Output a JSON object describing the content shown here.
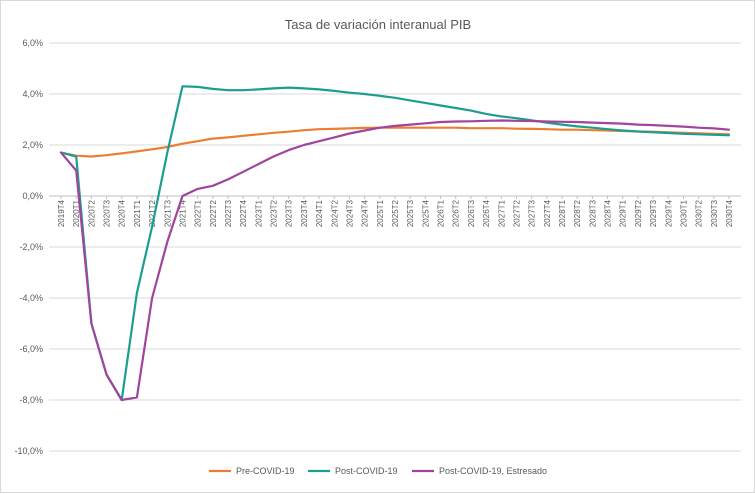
{
  "chart_data": {
    "type": "line",
    "title": "Tasa de variación interanual PIB",
    "xlabel": "",
    "ylabel": "",
    "ylim": [
      -10,
      6
    ],
    "yticks": [
      6,
      4,
      2,
      0,
      -2,
      -4,
      -6,
      -8,
      -10
    ],
    "ytick_labels": [
      "6,0%",
      "4,0%",
      "2,0%",
      "0,0%",
      "-2,0%",
      "-4,0%",
      "-6,0%",
      "-8,0%",
      "-10,0%"
    ],
    "grid": true,
    "legend_position": "bottom",
    "categories": [
      "2019T4",
      "2020T1",
      "2020T2",
      "2020T3",
      "2020T4",
      "2021T1",
      "2021T2",
      "2021T3",
      "2021T4",
      "2022T1",
      "2022T2",
      "2022T3",
      "2022T4",
      "2023T1",
      "2023T2",
      "2023T3",
      "2023T4",
      "2024T1",
      "2024T2",
      "2024T3",
      "2024T4",
      "2025T1",
      "2025T2",
      "2025T3",
      "2025T4",
      "2026T1",
      "2026T2",
      "2026T3",
      "2026T4",
      "2027T1",
      "2027T2",
      "2027T3",
      "2027T4",
      "2028T1",
      "2028T2",
      "2028T3",
      "2028T4",
      "2029T1",
      "2029T2",
      "2029T3",
      "2029T4",
      "2030T1",
      "2030T2",
      "2030T3",
      "2030T4"
    ],
    "series": [
      {
        "name": "Pre-COVID-19",
        "color": "#ED7D31",
        "values": [
          1.7,
          1.58,
          1.55,
          1.6,
          1.67,
          1.75,
          1.83,
          1.92,
          2.05,
          2.15,
          2.25,
          2.3,
          2.36,
          2.42,
          2.48,
          2.52,
          2.58,
          2.62,
          2.63,
          2.65,
          2.67,
          2.68,
          2.68,
          2.68,
          2.68,
          2.68,
          2.68,
          2.66,
          2.66,
          2.66,
          2.64,
          2.63,
          2.62,
          2.6,
          2.6,
          2.58,
          2.57,
          2.55,
          2.53,
          2.52,
          2.5,
          2.48,
          2.46,
          2.44,
          2.42
        ]
      },
      {
        "name": "Post-COVID-19",
        "color": "#1B9E91",
        "values": [
          1.7,
          1.55,
          -5.0,
          -7.0,
          -8.0,
          -3.8,
          -1.2,
          1.7,
          4.3,
          4.28,
          4.2,
          4.15,
          4.15,
          4.18,
          4.22,
          4.25,
          4.22,
          4.18,
          4.12,
          4.05,
          4.0,
          3.93,
          3.85,
          3.75,
          3.65,
          3.55,
          3.45,
          3.35,
          3.22,
          3.12,
          3.05,
          2.97,
          2.88,
          2.8,
          2.73,
          2.68,
          2.62,
          2.57,
          2.53,
          2.5,
          2.47,
          2.44,
          2.42,
          2.4,
          2.38
        ]
      },
      {
        "name": "Post-COVID-19, Estresado",
        "color": "#A0449E",
        "values": [
          1.7,
          1.0,
          -5.0,
          -7.0,
          -8.0,
          -7.9,
          -4.0,
          -1.8,
          0.0,
          0.28,
          0.4,
          0.65,
          0.95,
          1.25,
          1.55,
          1.8,
          2.0,
          2.15,
          2.3,
          2.45,
          2.57,
          2.68,
          2.75,
          2.8,
          2.85,
          2.9,
          2.92,
          2.93,
          2.95,
          2.96,
          2.95,
          2.94,
          2.92,
          2.91,
          2.9,
          2.88,
          2.86,
          2.84,
          2.8,
          2.78,
          2.75,
          2.72,
          2.68,
          2.65,
          2.6
        ]
      }
    ]
  }
}
